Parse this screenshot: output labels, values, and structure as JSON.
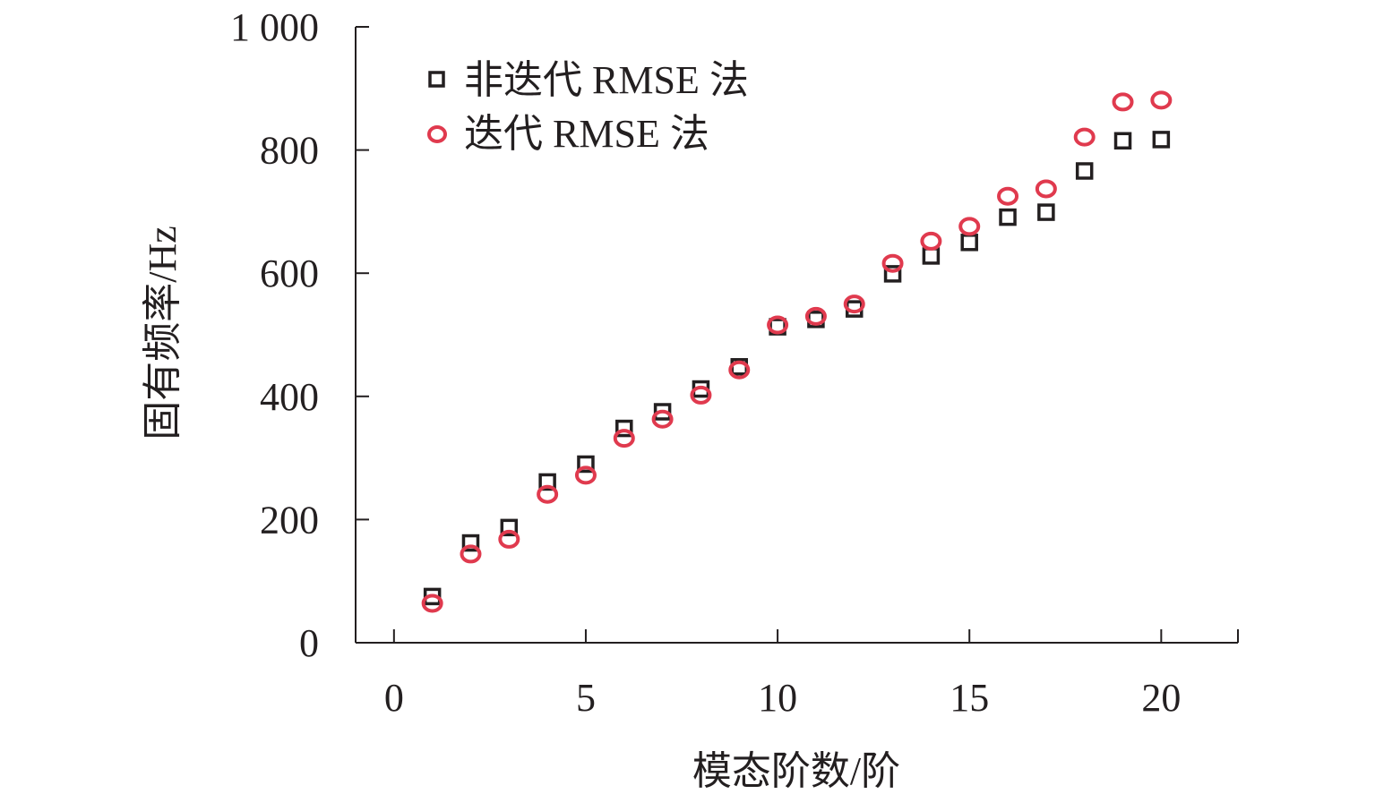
{
  "chart_data": {
    "type": "scatter",
    "title": "",
    "xlabel": "模态阶数/阶",
    "ylabel": "固有频率/Hz",
    "xlim": [
      -1,
      22
    ],
    "ylim": [
      0,
      1000
    ],
    "xticks": [
      0,
      5,
      10,
      15,
      20
    ],
    "xtick_labels": [
      "0",
      "5",
      "10",
      "15",
      "20"
    ],
    "yticks": [
      0,
      200,
      400,
      600,
      800,
      1000
    ],
    "ytick_labels": [
      "0",
      "200",
      "400",
      "600",
      "800",
      "1 000"
    ],
    "grid": false,
    "legend_position": "top-left",
    "series": [
      {
        "name": "非迭代 RMSE 法",
        "marker": "square",
        "color": "#231f20",
        "x": [
          1,
          2,
          3,
          4,
          5,
          6,
          7,
          8,
          9,
          10,
          11,
          12,
          13,
          14,
          15,
          16,
          17,
          18,
          19,
          20
        ],
        "y": [
          75,
          162,
          187,
          261,
          290,
          348,
          375,
          412,
          448,
          513,
          525,
          542,
          599,
          628,
          650,
          691,
          699,
          766,
          815,
          817
        ]
      },
      {
        "name": "迭代 RMSE 法",
        "marker": "circle",
        "color": "#e03a4e",
        "x": [
          1,
          2,
          3,
          4,
          5,
          6,
          7,
          8,
          9,
          10,
          11,
          12,
          13,
          14,
          15,
          16,
          17,
          18,
          19,
          20
        ],
        "y": [
          64,
          144,
          168,
          241,
          272,
          332,
          363,
          402,
          443,
          516,
          530,
          550,
          616,
          652,
          676,
          725,
          737,
          821,
          878,
          881
        ]
      }
    ]
  }
}
